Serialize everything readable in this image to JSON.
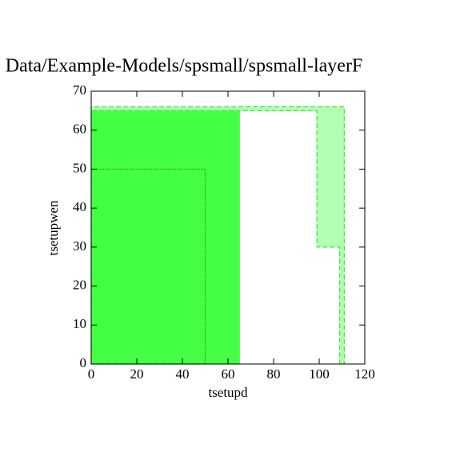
{
  "chart_data": {
    "type": "polygon",
    "title": "Data/Example-Models/spsmall/spsmall-layerF",
    "xlabel": "tsetupd",
    "ylabel": "tsetupwen",
    "xlim": [
      0,
      120
    ],
    "ylim": [
      0,
      70
    ],
    "xticks": [
      0,
      20,
      40,
      60,
      80,
      100,
      120
    ],
    "yticks": [
      0,
      10,
      20,
      30,
      40,
      50,
      60,
      70
    ],
    "series": [
      {
        "color": "#44ff44",
        "fill": "#44ff44",
        "style": "solid",
        "x": [
          0,
          65,
          65,
          0
        ],
        "y": [
          0,
          0,
          65,
          65
        ]
      },
      {
        "color": "#33ee33",
        "fill": "#b3ffb3",
        "style": "dashed",
        "x": [
          0,
          0,
          111,
          111,
          109,
          109,
          99,
          99
        ],
        "y": [
          65,
          66,
          66,
          0,
          0,
          30,
          30,
          65
        ]
      },
      {
        "color": "#116611",
        "fill": "none",
        "style": "dotted",
        "x": [
          0,
          50,
          50,
          0
        ],
        "y": [
          0,
          0,
          50,
          50
        ]
      }
    ]
  }
}
